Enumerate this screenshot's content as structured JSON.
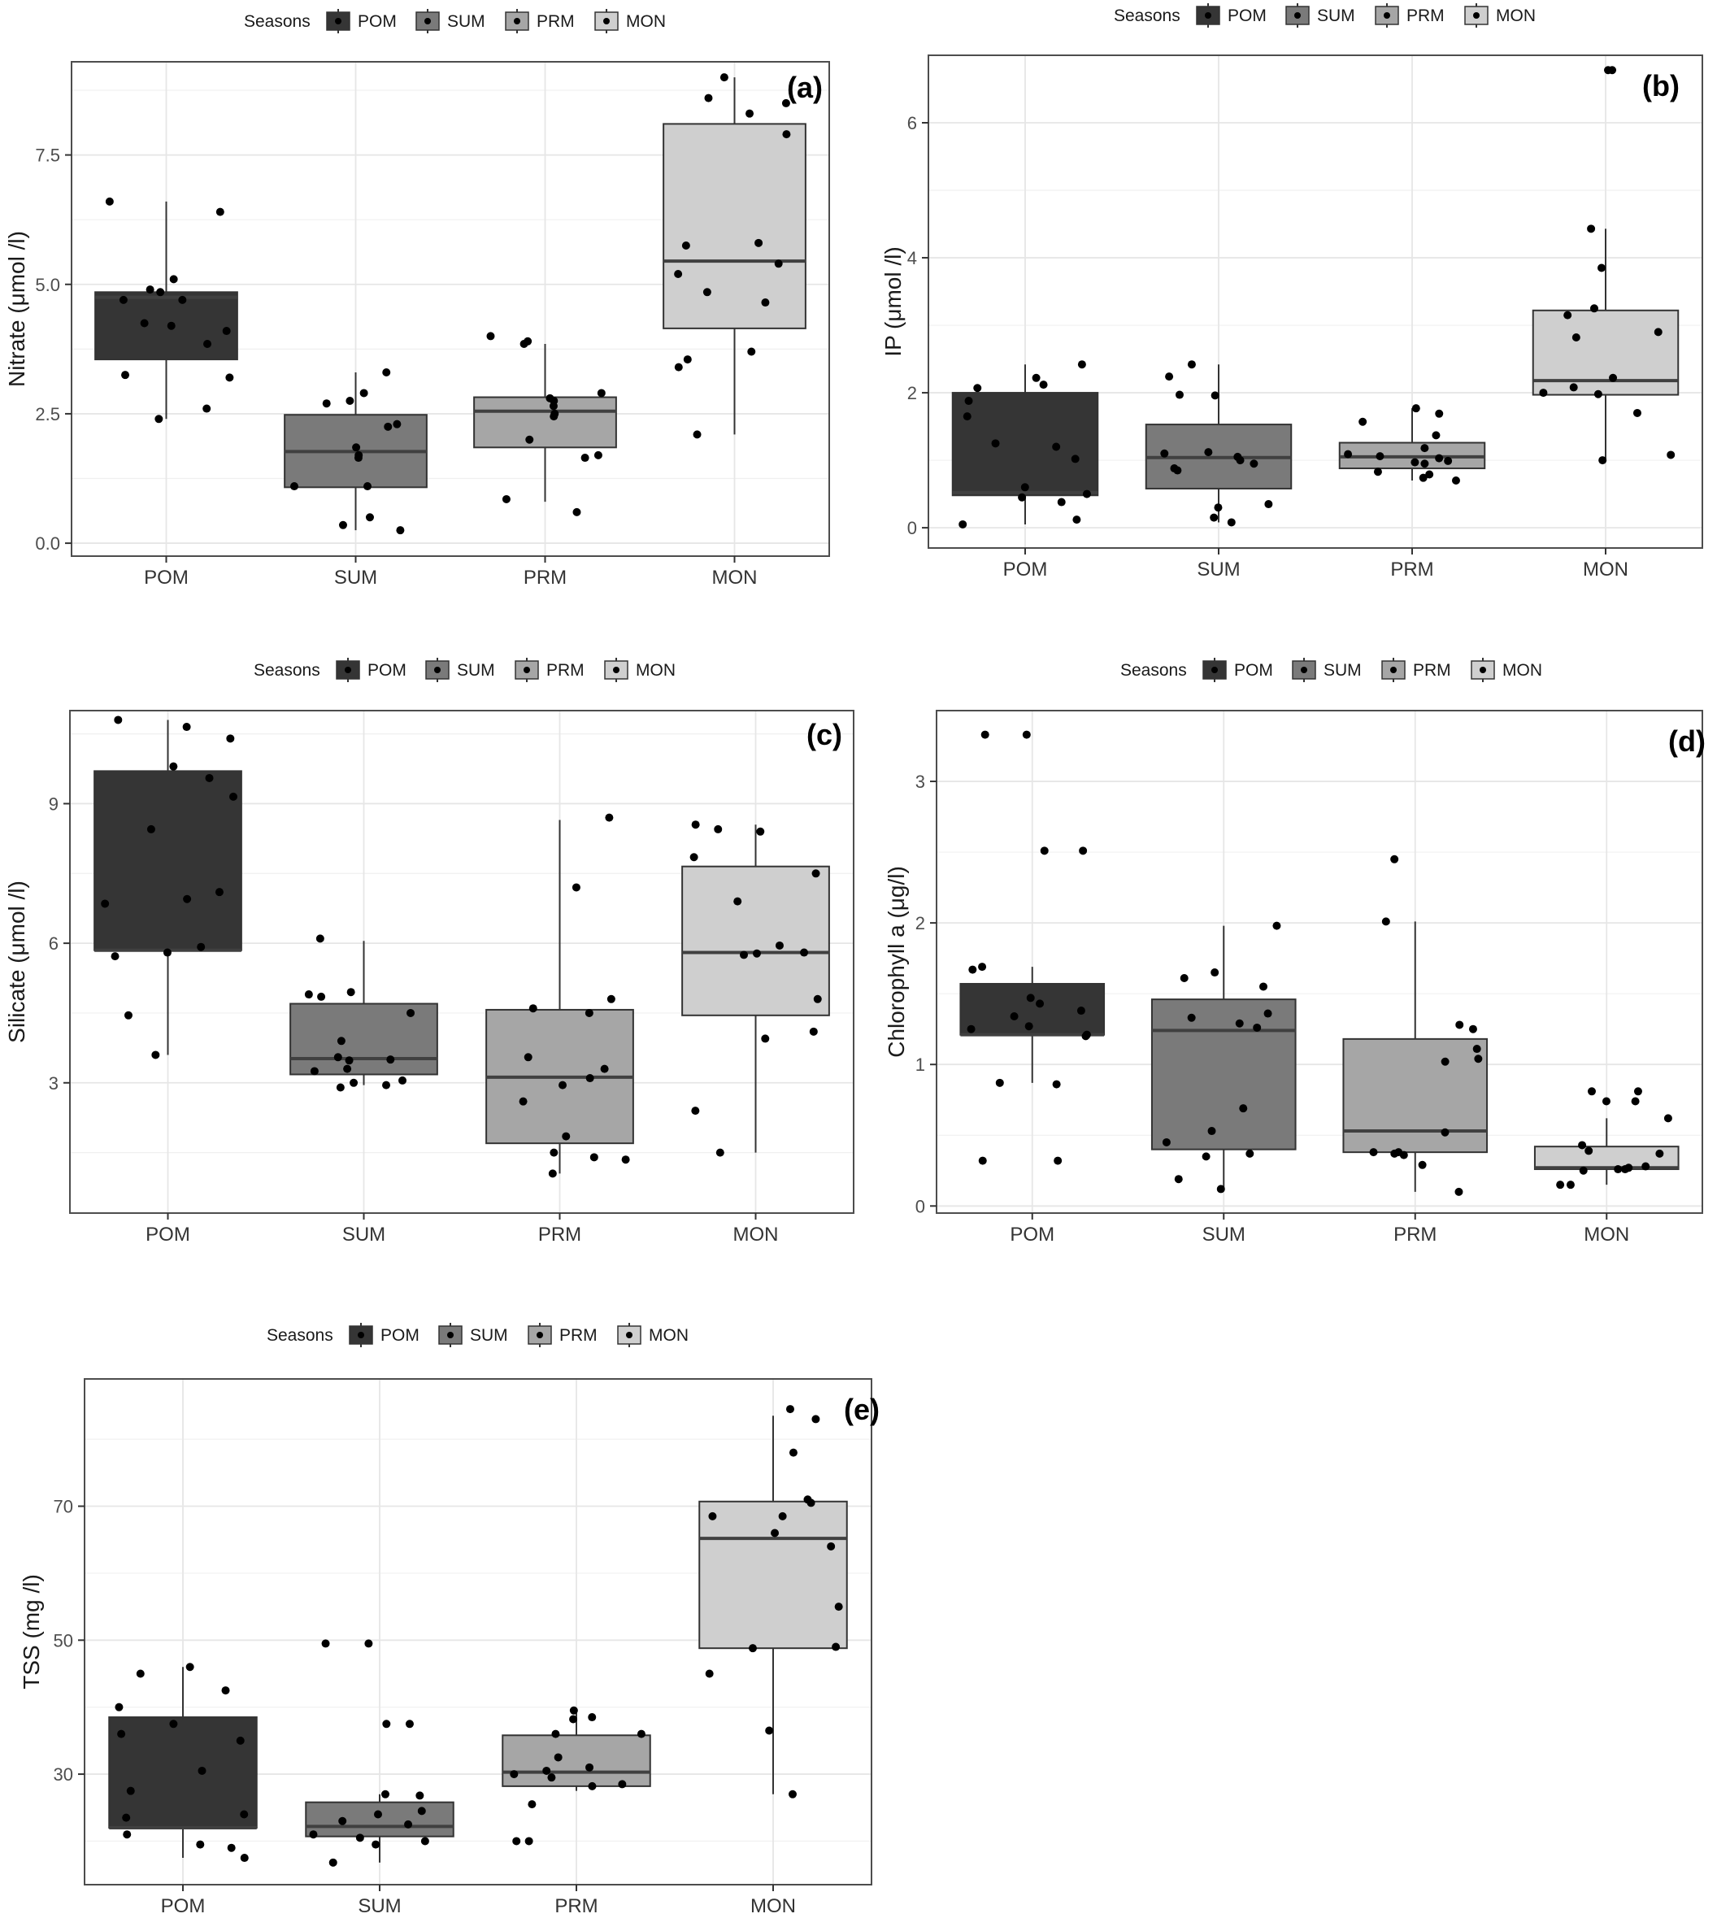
{
  "legend_title": "Seasons",
  "legend_items": [
    "POM",
    "SUM",
    "PRM",
    "MON"
  ],
  "colors": {
    "POM": "#353535",
    "SUM": "#7a7a7a",
    "PRM": "#a6a6a6",
    "MON": "#cfcfcf",
    "grid": "#e6e6e6",
    "frame": "#4d4d4d",
    "median": "#404040"
  },
  "chart_data": [
    {
      "type": "box",
      "panel_label": "(a)",
      "ylabel": "Nitrate (μmol /l)",
      "categories": [
        "POM",
        "SUM",
        "PRM",
        "MON"
      ],
      "ylim": [
        -0.25,
        9.3
      ],
      "yticks": [
        0.0,
        2.5,
        5.0,
        7.5
      ],
      "ytick_labels": [
        "0.0",
        "2.5",
        "5.0",
        "7.5"
      ],
      "boxes": [
        {
          "min": 2.4,
          "q1": 3.55,
          "median": 4.75,
          "q3": 4.85,
          "max": 6.6
        },
        {
          "min": 0.25,
          "q1": 1.08,
          "median": 1.77,
          "q3": 2.48,
          "max": 3.3
        },
        {
          "min": 0.8,
          "q1": 1.85,
          "median": 2.55,
          "q3": 2.82,
          "max": 3.85
        },
        {
          "min": 2.1,
          "q1": 4.15,
          "median": 5.45,
          "q3": 8.1,
          "max": 9.0
        }
      ],
      "points": [
        [
          6.4,
          6.6,
          5.1,
          4.9,
          4.85,
          4.7,
          4.7,
          4.25,
          4.2,
          4.1,
          3.85,
          3.25,
          3.2,
          2.6,
          2.4
        ],
        [
          3.3,
          2.9,
          2.75,
          2.7,
          2.3,
          2.25,
          1.85,
          1.7,
          1.65,
          1.1,
          1.1,
          0.5,
          0.35,
          0.25
        ],
        [
          4.0,
          3.9,
          3.85,
          2.9,
          2.8,
          2.75,
          2.65,
          2.5,
          2.45,
          2.0,
          1.7,
          1.65,
          0.85,
          0.6
        ],
        [
          9.0,
          8.6,
          8.5,
          8.3,
          7.9,
          5.8,
          5.75,
          5.4,
          5.2,
          4.85,
          4.65,
          3.7,
          3.55,
          3.4,
          2.1
        ]
      ]
    },
    {
      "type": "box",
      "panel_label": "(b)",
      "ylabel": "IP (μmol /l)",
      "categories": [
        "POM",
        "SUM",
        "PRM",
        "MON"
      ],
      "ylim": [
        -0.3,
        7.0
      ],
      "yticks": [
        0,
        2,
        4,
        6
      ],
      "ytick_labels": [
        "0",
        "2",
        "4",
        "6"
      ],
      "boxes": [
        {
          "min": 0.05,
          "q1": 0.48,
          "median": 0.52,
          "q3": 2.0,
          "max": 2.42
        },
        {
          "min": 0.08,
          "q1": 0.58,
          "median": 1.04,
          "q3": 1.53,
          "max": 2.42
        },
        {
          "min": 0.7,
          "q1": 0.88,
          "median": 1.05,
          "q3": 1.26,
          "max": 1.77
        },
        {
          "min": 1.0,
          "q1": 1.97,
          "median": 2.18,
          "q3": 3.22,
          "max": 4.43
        }
      ],
      "points": [
        [
          2.42,
          2.22,
          2.12,
          2.07,
          1.88,
          1.65,
          1.25,
          1.2,
          1.02,
          0.6,
          0.5,
          0.45,
          0.38,
          0.12,
          0.05
        ],
        [
          2.42,
          2.24,
          1.97,
          1.96,
          1.12,
          1.1,
          1.05,
          1.0,
          0.95,
          0.88,
          0.85,
          0.35,
          0.3,
          0.15,
          0.08
        ],
        [
          1.77,
          1.69,
          1.57,
          1.37,
          1.18,
          1.09,
          1.06,
          1.03,
          0.99,
          0.97,
          0.95,
          0.83,
          0.79,
          0.74,
          0.7
        ],
        [
          6.78,
          6.78,
          4.43,
          3.85,
          3.25,
          3.15,
          2.9,
          2.82,
          2.22,
          2.08,
          2.0,
          1.98,
          1.7,
          1.08,
          1.0
        ]
      ]
    },
    {
      "type": "box",
      "panel_label": "(c)",
      "ylabel": "Silicate (μmol /l)",
      "categories": [
        "POM",
        "SUM",
        "PRM",
        "MON"
      ],
      "ylim": [
        0.2,
        11.0
      ],
      "yticks": [
        3,
        6,
        9
      ],
      "ytick_labels": [
        "3",
        "6",
        "9"
      ],
      "boxes": [
        {
          "min": 3.6,
          "q1": 5.85,
          "median": 5.85,
          "q3": 9.7,
          "max": 10.8
        },
        {
          "min": 2.95,
          "q1": 3.18,
          "median": 3.52,
          "q3": 4.7,
          "max": 6.05
        },
        {
          "min": 1.05,
          "q1": 1.7,
          "median": 3.12,
          "q3": 4.57,
          "max": 8.65
        },
        {
          "min": 1.5,
          "q1": 4.45,
          "median": 5.8,
          "q3": 7.65,
          "max": 8.55
        }
      ],
      "points": [
        [
          10.8,
          10.65,
          10.4,
          9.8,
          9.55,
          9.15,
          8.45,
          7.1,
          6.95,
          6.85,
          5.92,
          5.8,
          5.72,
          4.45,
          3.6
        ],
        [
          6.1,
          4.95,
          4.9,
          4.85,
          4.5,
          3.9,
          3.55,
          3.5,
          3.48,
          3.3,
          3.25,
          3.05,
          3.0,
          2.95,
          2.9
        ],
        [
          8.7,
          7.2,
          4.8,
          4.6,
          4.5,
          3.55,
          3.3,
          3.1,
          2.95,
          2.6,
          1.85,
          1.5,
          1.4,
          1.35,
          1.05
        ],
        [
          8.55,
          8.45,
          8.4,
          7.85,
          7.5,
          6.9,
          5.95,
          5.8,
          5.78,
          5.75,
          4.8,
          4.1,
          3.95,
          2.4,
          1.5
        ]
      ]
    },
    {
      "type": "box",
      "panel_label": "(d)",
      "ylabel": "Chlorophyll a (μg/l)",
      "categories": [
        "POM",
        "SUM",
        "PRM",
        "MON"
      ],
      "ylim": [
        -0.05,
        3.5
      ],
      "yticks": [
        0,
        1,
        2,
        3
      ],
      "ytick_labels": [
        "0",
        "1",
        "2",
        "3"
      ],
      "boxes": [
        {
          "min": 0.87,
          "q1": 1.21,
          "median": 1.21,
          "q3": 1.57,
          "max": 1.69
        },
        {
          "min": 0.12,
          "q1": 0.4,
          "median": 1.24,
          "q3": 1.46,
          "max": 1.98
        },
        {
          "min": 0.1,
          "q1": 0.38,
          "median": 0.53,
          "q3": 1.18,
          "max": 2.01
        },
        {
          "min": 0.15,
          "q1": 0.26,
          "median": 0.27,
          "q3": 0.42,
          "max": 0.62
        }
      ],
      "points": [
        [
          3.33,
          3.33,
          2.51,
          2.51,
          1.69,
          1.67,
          1.47,
          1.43,
          1.38,
          1.34,
          1.27,
          1.25,
          1.21,
          1.2,
          0.87,
          0.86,
          0.32,
          0.32
        ],
        [
          1.98,
          1.65,
          1.61,
          1.55,
          1.36,
          1.33,
          1.29,
          1.26,
          0.69,
          0.53,
          0.45,
          0.37,
          0.35,
          0.19,
          0.12
        ],
        [
          2.45,
          2.01,
          1.28,
          1.25,
          1.11,
          1.04,
          1.02,
          0.52,
          0.38,
          0.38,
          0.37,
          0.36,
          0.29,
          0.1
        ],
        [
          0.81,
          0.81,
          0.74,
          0.74,
          0.62,
          0.43,
          0.39,
          0.37,
          0.28,
          0.27,
          0.26,
          0.26,
          0.25,
          0.15,
          0.15
        ]
      ]
    },
    {
      "type": "box",
      "panel_label": "(e)",
      "ylabel": "TSS (mg /l)",
      "categories": [
        "POM",
        "SUM",
        "PRM",
        "MON"
      ],
      "ylim": [
        13.5,
        89.0
      ],
      "yticks": [
        30,
        50,
        70
      ],
      "ytick_labels": [
        "30",
        "50",
        "70"
      ],
      "boxes": [
        {
          "min": 17.5,
          "q1": 22.0,
          "median": 22.0,
          "q3": 38.5,
          "max": 46.0
        },
        {
          "min": 16.8,
          "q1": 20.7,
          "median": 22.2,
          "q3": 25.8,
          "max": 27.0
        },
        {
          "min": 27.5,
          "q1": 28.2,
          "median": 30.3,
          "q3": 35.8,
          "max": 39.2
        },
        {
          "min": 27.0,
          "q1": 48.8,
          "median": 65.2,
          "q3": 70.7,
          "max": 83.5
        }
      ],
      "points": [
        [
          46.0,
          45.0,
          42.5,
          40.0,
          37.5,
          36.0,
          35.0,
          30.5,
          27.5,
          24.0,
          23.5,
          21.0,
          19.5,
          19.0,
          17.5
        ],
        [
          49.5,
          49.5,
          37.5,
          37.5,
          27.0,
          26.8,
          24.5,
          24.0,
          23.0,
          22.5,
          21.0,
          20.5,
          20.0,
          19.5,
          16.8
        ],
        [
          39.5,
          38.5,
          38.2,
          36.0,
          36.0,
          32.5,
          31.0,
          30.5,
          30.0,
          29.5,
          28.5,
          28.2,
          25.5,
          20.0,
          20.0
        ],
        [
          84.5,
          83.0,
          78.0,
          71.0,
          70.5,
          68.5,
          68.5,
          66.0,
          64.0,
          55.0,
          49.0,
          48.8,
          45.0,
          36.5,
          27.0
        ]
      ]
    }
  ]
}
